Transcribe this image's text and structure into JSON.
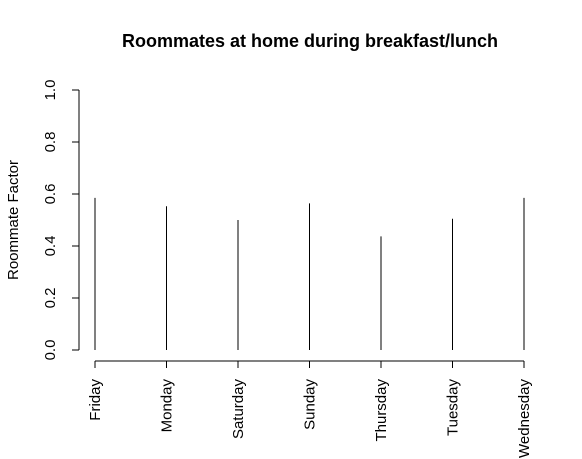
{
  "chart_data": {
    "type": "bar",
    "title": "Roommates at home during breakfast/lunch",
    "xlabel": "",
    "ylabel": "Roommate Factor",
    "categories": [
      "Friday",
      "Monday",
      "Saturday",
      "Sunday",
      "Thursday",
      "Tuesday",
      "Wednesday"
    ],
    "values": [
      0.585,
      0.553,
      0.5,
      0.564,
      0.437,
      0.505,
      0.585
    ],
    "ylim": [
      0,
      1.0
    ],
    "yticks": [
      "0.0",
      "0.2",
      "0.4",
      "0.6",
      "0.8",
      "1.0"
    ],
    "ytick_values": [
      0,
      0.2,
      0.4,
      0.6,
      0.8,
      1.0
    ],
    "grid": false,
    "colors": {
      "mark": "#000000",
      "axis": "#000000"
    }
  }
}
